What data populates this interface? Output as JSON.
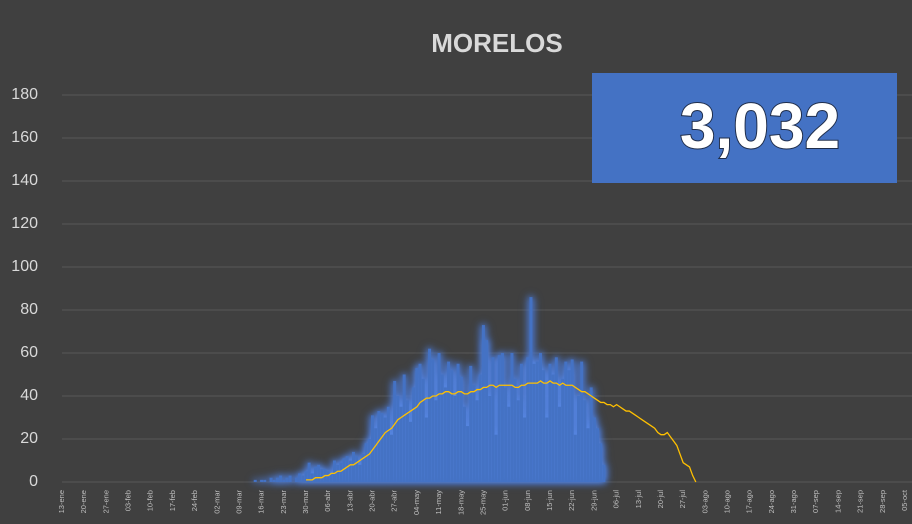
{
  "chart_data": {
    "type": "bar",
    "title": "MORELOS",
    "annotation": "3,032",
    "ylim": [
      0,
      180
    ],
    "yticks": [
      0,
      20,
      40,
      60,
      80,
      100,
      120,
      140,
      160,
      180
    ],
    "grid": true,
    "categories": [
      "13-ene",
      null,
      null,
      null,
      null,
      null,
      null,
      "20-ene",
      null,
      null,
      null,
      null,
      null,
      null,
      "27-ene",
      null,
      null,
      null,
      null,
      null,
      null,
      "03-feb",
      null,
      null,
      null,
      null,
      null,
      null,
      "10-feb",
      null,
      null,
      null,
      null,
      null,
      null,
      "17-feb",
      null,
      null,
      null,
      null,
      null,
      null,
      "24-feb",
      null,
      null,
      null,
      null,
      null,
      null,
      "02-mar",
      null,
      null,
      null,
      null,
      null,
      null,
      "09-mar",
      null,
      null,
      null,
      null,
      null,
      null,
      "16-mar",
      null,
      null,
      null,
      null,
      null,
      null,
      "23-mar",
      null,
      null,
      null,
      null,
      null,
      null,
      "30-mar",
      null,
      null,
      null,
      null,
      null,
      null,
      "06-abr",
      null,
      null,
      null,
      null,
      null,
      null,
      "13-abr",
      null,
      null,
      null,
      null,
      null,
      null,
      "20-abr",
      null,
      null,
      null,
      null,
      null,
      null,
      "27-abr",
      null,
      null,
      null,
      null,
      null,
      null,
      "04-may",
      null,
      null,
      null,
      null,
      null,
      null,
      "11-may",
      null,
      null,
      null,
      null,
      null,
      null,
      "18-may",
      null,
      null,
      null,
      null,
      null,
      null,
      "25-may",
      null,
      null,
      null,
      null,
      null,
      null,
      "01-jun",
      null,
      null,
      null,
      null,
      null,
      null,
      "08-jun",
      null,
      null,
      null,
      null,
      null,
      null,
      "15-jun",
      null,
      null,
      null,
      null,
      null,
      null,
      "22-jun",
      null,
      null,
      null,
      null,
      null,
      null,
      "29-jun",
      null,
      null,
      null,
      null,
      null,
      null,
      "06-jul",
      null,
      null,
      null,
      null,
      null,
      null,
      "13-jul",
      null,
      null,
      null,
      null,
      null,
      null,
      "20-jul",
      null,
      null,
      null,
      null,
      null,
      null,
      "27-jul",
      null,
      null,
      null,
      null,
      null,
      null,
      "03-ago",
      null,
      null,
      null,
      null,
      null,
      null,
      "10-ago",
      null,
      null,
      null,
      null,
      null,
      null,
      "17-ago",
      null,
      null,
      null,
      null,
      null,
      null,
      "24-ago",
      null,
      null,
      null,
      null,
      null,
      null,
      "31-ago",
      null,
      null,
      null,
      null,
      null,
      null,
      "07-sep",
      null,
      null,
      null,
      null,
      null,
      null,
      "14-sep",
      null,
      null,
      null,
      null,
      null,
      null,
      "21-sep",
      null,
      null,
      null,
      null,
      null,
      null,
      "28-sep",
      null,
      null,
      null,
      null,
      null,
      null,
      "05-oct"
    ],
    "series": [
      {
        "type": "bar",
        "color": "#4472c4",
        "values": [
          null,
          null,
          null,
          null,
          null,
          null,
          null,
          null,
          null,
          null,
          null,
          null,
          null,
          null,
          null,
          null,
          null,
          null,
          null,
          null,
          null,
          null,
          null,
          null,
          null,
          null,
          null,
          null,
          null,
          null,
          null,
          null,
          null,
          null,
          null,
          null,
          null,
          null,
          null,
          null,
          null,
          null,
          null,
          null,
          null,
          null,
          null,
          null,
          null,
          null,
          null,
          null,
          null,
          null,
          null,
          null,
          null,
          null,
          null,
          null,
          null,
          1,
          0,
          1,
          1,
          0,
          2,
          1,
          2,
          3,
          1,
          2,
          3,
          0,
          2,
          4,
          3,
          5,
          9,
          4,
          7,
          8,
          6,
          6,
          5,
          4,
          10,
          8,
          9,
          11,
          12,
          10,
          14,
          12,
          8,
          13,
          18,
          20,
          31,
          25,
          33,
          32,
          30,
          35,
          22,
          47,
          40,
          35,
          50,
          38,
          28,
          44,
          53,
          55,
          48,
          30,
          62,
          57,
          38,
          60,
          50,
          44,
          56,
          52,
          40,
          55,
          49,
          35,
          26,
          54,
          45,
          38,
          50,
          73,
          66,
          40,
          58,
          22,
          59,
          60,
          44,
          35,
          60,
          48,
          38,
          55,
          30,
          58,
          86,
          55,
          56,
          60,
          52,
          30,
          55,
          50,
          58,
          35,
          48,
          56,
          52,
          57,
          22,
          40,
          56,
          38,
          25,
          44,
          30,
          25,
          18,
          8,
          null,
          null,
          null,
          null,
          null,
          null,
          null,
          null,
          null,
          null,
          null,
          null,
          null,
          null,
          null,
          null,
          null,
          null,
          null,
          null,
          null,
          null,
          null,
          null,
          null,
          null,
          null,
          null,
          null,
          null,
          null,
          null,
          null,
          null,
          null,
          null,
          null,
          null,
          null,
          null,
          null,
          null,
          null,
          null,
          null,
          null,
          null,
          null,
          null,
          null,
          null,
          null,
          null,
          null,
          null,
          null,
          null,
          null,
          null,
          null,
          null,
          null,
          null,
          null,
          null,
          null,
          null,
          null,
          null,
          null,
          null,
          null,
          null,
          null,
          null,
          null,
          null,
          null,
          null,
          null,
          null,
          null,
          null,
          null,
          null,
          null,
          null,
          null,
          null,
          null,
          null,
          null,
          null,
          null,
          null
        ]
      },
      {
        "type": "line",
        "color": "#ffc000",
        "values": [
          null,
          null,
          null,
          null,
          null,
          null,
          null,
          null,
          null,
          null,
          null,
          null,
          null,
          null,
          null,
          null,
          null,
          null,
          null,
          null,
          null,
          null,
          null,
          null,
          null,
          null,
          null,
          null,
          null,
          null,
          null,
          null,
          null,
          null,
          null,
          null,
          null,
          null,
          null,
          null,
          null,
          null,
          null,
          null,
          null,
          null,
          null,
          null,
          null,
          null,
          null,
          null,
          null,
          null,
          null,
          null,
          null,
          null,
          null,
          null,
          null,
          null,
          null,
          null,
          null,
          null,
          null,
          null,
          null,
          null,
          null,
          null,
          null,
          null,
          null,
          null,
          null,
          1,
          1,
          1,
          2,
          2,
          2,
          3,
          3,
          4,
          4,
          5,
          5,
          6,
          7,
          8,
          8,
          9,
          10,
          11,
          12,
          13,
          15,
          17,
          19,
          21,
          23,
          24,
          25,
          27,
          29,
          30,
          31,
          32,
          33,
          34,
          35,
          37,
          38,
          39,
          39,
          40,
          40,
          41,
          41,
          42,
          42,
          41,
          41,
          42,
          42,
          41,
          41,
          42,
          42,
          43,
          43,
          44,
          44,
          45,
          45,
          44,
          45,
          45,
          45,
          45,
          45,
          44,
          44,
          45,
          45,
          46,
          46,
          46,
          46,
          47,
          46,
          46,
          47,
          46,
          46,
          45,
          46,
          45,
          45,
          45,
          44,
          43,
          42,
          42,
          41,
          40,
          39,
          38,
          37,
          37,
          36,
          36,
          35,
          36,
          35,
          34,
          33,
          33,
          32,
          31,
          30,
          29,
          28,
          27,
          26,
          25,
          23,
          22,
          22,
          23,
          21,
          19,
          17,
          13,
          9,
          8,
          7,
          3,
          0,
          null,
          null,
          null,
          null,
          null,
          null,
          null,
          null,
          null,
          null,
          null,
          null,
          null,
          null,
          null,
          null,
          null,
          null,
          null,
          null,
          null,
          null,
          null,
          null,
          null,
          null,
          null,
          null,
          null,
          null,
          null,
          null,
          null,
          null,
          null,
          null,
          null,
          null,
          null,
          null,
          null,
          null,
          null,
          null,
          null,
          null,
          null,
          null,
          null,
          null,
          null,
          null,
          null,
          null,
          null,
          null,
          null,
          null,
          null,
          null,
          null,
          null,
          null,
          null,
          null,
          null
        ]
      }
    ]
  }
}
